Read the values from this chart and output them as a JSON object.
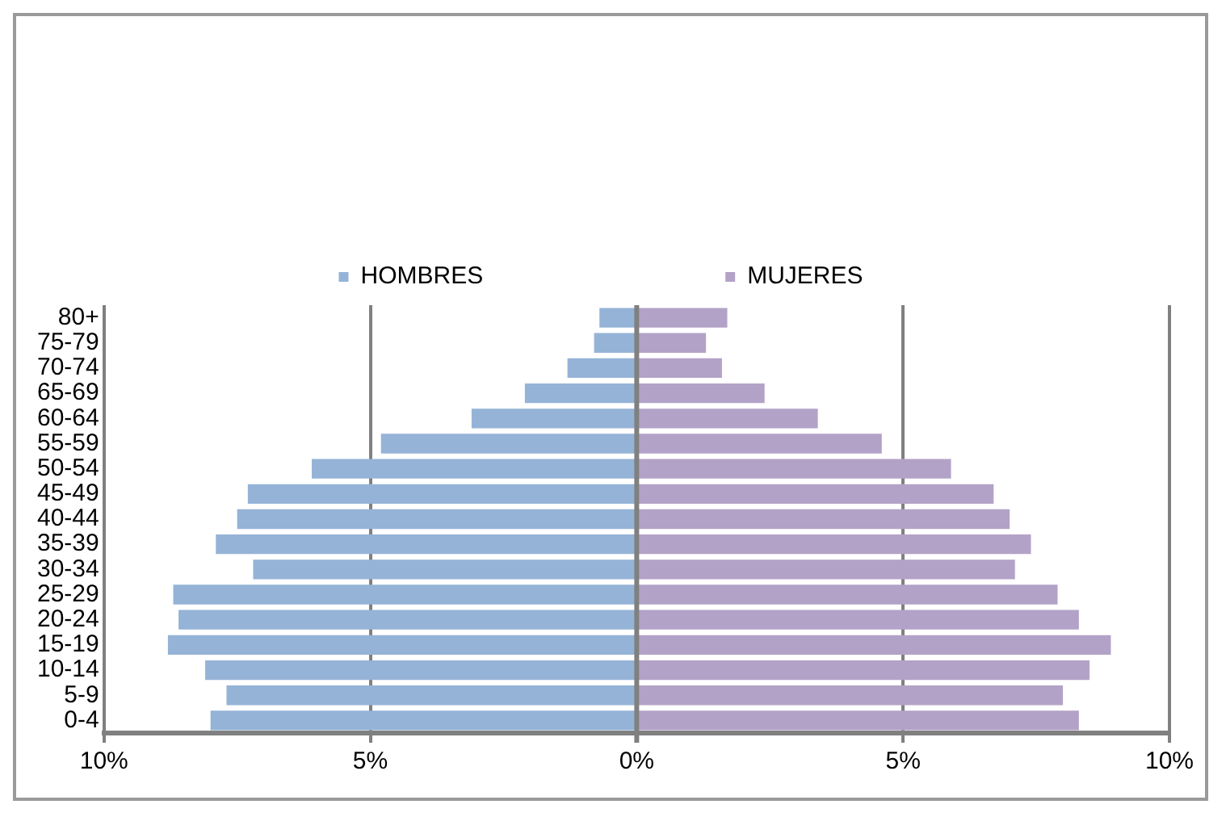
{
  "chart_data": {
    "type": "bar",
    "orientation": "horizontal",
    "stacked": true,
    "categories": [
      "80+",
      "75-79",
      "70-74",
      "65-69",
      "60-64",
      "55-59",
      "50-54",
      "45-49",
      "40-44",
      "35-39",
      "30-34",
      "25-29",
      "20-24",
      "15-19",
      "10-14",
      "5-9",
      "0-4"
    ],
    "series": [
      {
        "name": "HOMBRES",
        "color": "#95b3d7",
        "values": [
          -0.7,
          -0.8,
          -1.3,
          -2.1,
          -3.1,
          -4.8,
          -6.1,
          -7.3,
          -7.5,
          -7.9,
          -7.2,
          -8.7,
          -8.6,
          -8.8,
          -8.1,
          -7.7,
          -8.0
        ]
      },
      {
        "name": "MUJERES",
        "color": "#b3a2c7",
        "values": [
          1.7,
          1.3,
          1.6,
          2.4,
          3.4,
          4.6,
          5.9,
          6.7,
          7.0,
          7.4,
          7.1,
          7.9,
          8.3,
          8.9,
          8.5,
          8.0,
          8.3
        ]
      }
    ],
    "xlim": [
      -10,
      10
    ],
    "xticks": [
      {
        "value": -10,
        "label": "10%"
      },
      {
        "value": -5,
        "label": "5%"
      },
      {
        "value": 0,
        "label": "0%"
      },
      {
        "value": 5,
        "label": "5%"
      },
      {
        "value": 10,
        "label": "10%"
      }
    ],
    "grid": "x",
    "legend": "top"
  }
}
